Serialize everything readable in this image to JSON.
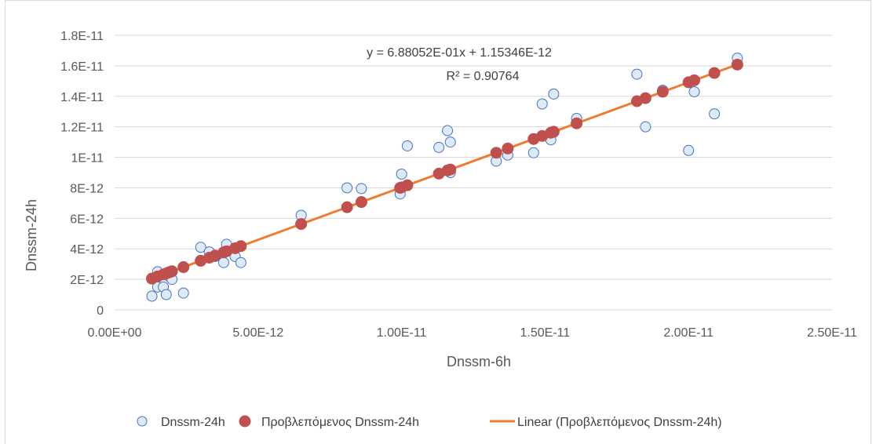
{
  "chart_data": {
    "type": "scatter",
    "xlabel": "Dnssm-6h",
    "ylabel": "Dnssm-24h",
    "xlim": [
      0,
      2.5e-11
    ],
    "ylim": [
      0,
      1.8e-11
    ],
    "x_ticks": [
      "0.00E+00",
      "5.00E-12",
      "1.00E-11",
      "1.50E-11",
      "2.00E-11",
      "2.50E-11"
    ],
    "x_tick_values": [
      0,
      5e-12,
      1e-11,
      1.5e-11,
      2e-11,
      2.5e-11
    ],
    "y_ticks": [
      "0",
      "2E-12",
      "4E-12",
      "6E-12",
      "8E-12",
      "1E-11",
      "1.2E-11",
      "1.4E-11",
      "1.6E-11",
      "1.8E-11"
    ],
    "y_tick_values": [
      0,
      2e-12,
      4e-12,
      6e-12,
      8e-12,
      1e-11,
      1.2e-11,
      1.4e-11,
      1.6e-11,
      1.8e-11
    ],
    "grid": "horizontal",
    "legend_position": "bottom",
    "annotations": {
      "equation": "y = 6.88052E-01x + 1.15346E-12",
      "r_squared": "R² = 0.90764"
    },
    "trendline": {
      "slope": 0.688052,
      "intercept": 1.15346e-12
    },
    "series": [
      {
        "name": "Dnssm-24h",
        "marker": "open-circle",
        "color": "#4472C4",
        "fill": "#DEEBF7",
        "x": [
          1.3e-12,
          1.5e-12,
          1.5e-12,
          1.7e-12,
          1.8e-12,
          1.9e-12,
          2e-12,
          2.4e-12,
          3e-12,
          3.3e-12,
          3.5e-12,
          3.8e-12,
          3.9e-12,
          4.2e-12,
          4.4e-12,
          6.5e-12,
          8.1e-12,
          8.6e-12,
          9.95e-12,
          1e-11,
          1.02e-11,
          1.13e-11,
          1.16e-11,
          1.17e-11,
          1.17e-11,
          1.33e-11,
          1.37e-11,
          1.46e-11,
          1.49e-11,
          1.52e-11,
          1.53e-11,
          1.61e-11,
          1.82e-11,
          1.85e-11,
          1.91e-11,
          2e-11,
          2.02e-11,
          2.09e-11,
          2.17e-11
        ],
        "y": [
          9e-13,
          1.5e-12,
          2.5e-12,
          1.5e-12,
          1e-12,
          2.2e-12,
          2e-12,
          1.1e-12,
          4.1e-12,
          3.8e-12,
          3.5e-12,
          3.1e-12,
          4.3e-12,
          3.5e-12,
          3.1e-12,
          6.2e-12,
          8e-12,
          7.95e-12,
          7.6e-12,
          8.9e-12,
          1.075e-11,
          1.065e-11,
          1.175e-11,
          1.1e-11,
          9e-12,
          9.75e-12,
          1.015e-11,
          1.03e-11,
          1.35e-11,
          1.115e-11,
          1.415e-11,
          1.255e-11,
          1.545e-11,
          1.2e-11,
          1.44e-11,
          1.045e-11,
          1.43e-11,
          1.285e-11,
          1.65e-11
        ]
      },
      {
        "name": "Προβλεπόμενος Dnssm-24h",
        "marker": "filled-circle",
        "color": "#C0504D",
        "x": [
          1.3e-12,
          1.5e-12,
          1.7e-12,
          1.8e-12,
          1.9e-12,
          2e-12,
          2.4e-12,
          3e-12,
          3.3e-12,
          3.5e-12,
          3.8e-12,
          3.9e-12,
          4.2e-12,
          4.4e-12,
          6.5e-12,
          8.1e-12,
          8.6e-12,
          9.95e-12,
          1e-11,
          1.02e-11,
          1.13e-11,
          1.16e-11,
          1.17e-11,
          1.33e-11,
          1.37e-11,
          1.46e-11,
          1.49e-11,
          1.52e-11,
          1.53e-11,
          1.61e-11,
          1.82e-11,
          1.85e-11,
          1.91e-11,
          2e-11,
          2.02e-11,
          2.09e-11,
          2.17e-11
        ],
        "y": [
          2.05e-12,
          2.19e-12,
          2.32e-12,
          2.39e-12,
          2.46e-12,
          2.53e-12,
          2.8e-12,
          3.22e-12,
          3.42e-12,
          3.56e-12,
          3.77e-12,
          3.84e-12,
          4.04e-12,
          4.18e-12,
          5.63e-12,
          6.73e-12,
          7.07e-12,
          8e-12,
          8.03e-12,
          8.17e-12,
          8.93e-12,
          9.14e-12,
          9.2e-12,
          1.03e-11,
          1.058e-11,
          1.12e-11,
          1.14e-11,
          1.161e-11,
          1.168e-11,
          1.223e-11,
          1.368e-11,
          1.388e-11,
          1.43e-11,
          1.492e-11,
          1.505e-11,
          1.553e-11,
          1.608e-11
        ]
      }
    ],
    "legend": [
      {
        "label": "Dnssm-24h",
        "marker": "open-circle"
      },
      {
        "label": "Προβλεπόμενος Dnssm-24h",
        "marker": "filled-circle"
      },
      {
        "label": "Linear (Προβλεπόμενος Dnssm-24h)",
        "marker": "line",
        "color": "#ED7D31"
      }
    ]
  }
}
